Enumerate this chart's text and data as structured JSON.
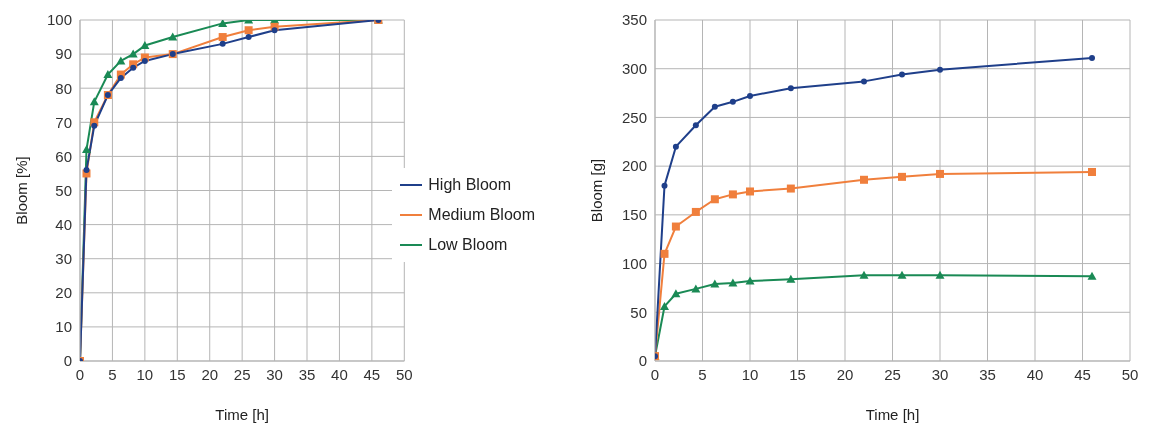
{
  "chart_data": [
    {
      "type": "line",
      "xlabel": "Time [h]",
      "ylabel": "Bloom [%]",
      "x": [
        0,
        1,
        2.2,
        4.3,
        6.3,
        8.2,
        10,
        14.3,
        22,
        26,
        30,
        46
      ],
      "xlim": [
        0,
        50
      ],
      "xticks": [
        0,
        5,
        10,
        15,
        20,
        25,
        30,
        35,
        40,
        45,
        50
      ],
      "ylim": [
        0,
        100
      ],
      "yticks": [
        0,
        10,
        20,
        30,
        40,
        50,
        60,
        70,
        80,
        90,
        100
      ],
      "grid": true,
      "legend": "right",
      "series": [
        {
          "name": "High Bloom",
          "color": "#1f3f8a",
          "marker": "circle",
          "values": [
            0,
            56,
            69,
            78,
            83,
            86,
            88,
            90,
            93,
            95,
            97,
            100
          ]
        },
        {
          "name": "Medium Bloom",
          "color": "#f07f3c",
          "marker": "square",
          "values": [
            0,
            55,
            70,
            78,
            84,
            87,
            89,
            90,
            95,
            97,
            98,
            100
          ]
        },
        {
          "name": "Low Bloom",
          "color": "#1a8a55",
          "marker": "triangle",
          "values": [
            0,
            62,
            76,
            84,
            88,
            90,
            92.5,
            95,
            99,
            100,
            100,
            100
          ]
        }
      ]
    },
    {
      "type": "line",
      "xlabel": "Time [h]",
      "ylabel": "Bloom [g]",
      "x": [
        0,
        1,
        2.2,
        4.3,
        6.3,
        8.2,
        10,
        14.3,
        22,
        26,
        30,
        46
      ],
      "xlim": [
        0,
        50
      ],
      "xticks": [
        0,
        5,
        10,
        15,
        20,
        25,
        30,
        35,
        40,
        45,
        50
      ],
      "ylim": [
        0,
        350
      ],
      "yticks": [
        0,
        50,
        100,
        150,
        200,
        250,
        300,
        350
      ],
      "grid": true,
      "series": [
        {
          "color": "#1f3f8a",
          "marker": "circle",
          "values": [
            5,
            180,
            220,
            242,
            261,
            266,
            272,
            280,
            287,
            294,
            299,
            311
          ]
        },
        {
          "color": "#f07f3c",
          "marker": "square",
          "values": [
            5,
            110,
            138,
            153,
            166,
            171,
            174,
            177,
            186,
            189,
            192,
            194
          ]
        },
        {
          "color": "#1a8a55",
          "marker": "triangle",
          "values": [
            5,
            56,
            69,
            74,
            79,
            80,
            82,
            84,
            88,
            88,
            88,
            87
          ]
        }
      ]
    }
  ]
}
